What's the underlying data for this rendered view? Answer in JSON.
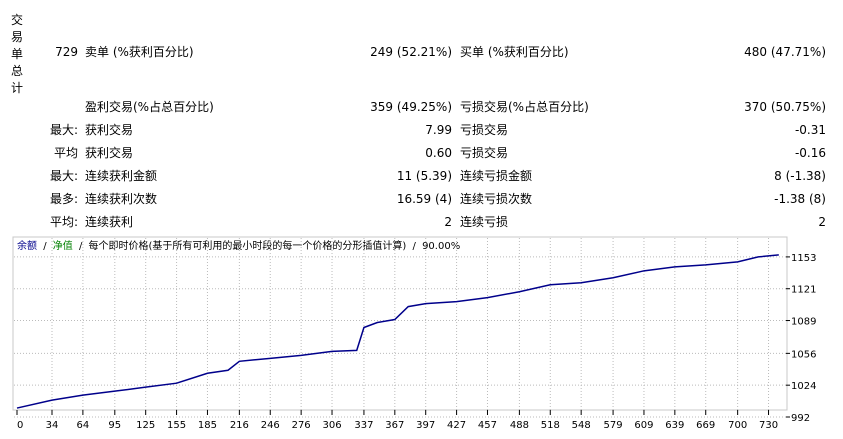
{
  "report": {
    "side_label": "交易单总计",
    "rows": [
      {
        "prefix": "729",
        "label1": "卖单 (%获利百分比)",
        "value1": "249 (52.21%)",
        "label2": "买单 (%获利百分比)",
        "value2": "480 (47.71%)"
      },
      {
        "label1": "盈利交易(%占总百分比)",
        "value1": "359 (49.25%)",
        "label2": "亏损交易(%占总百分比)",
        "value2": "370 (50.75%)"
      },
      {
        "prefix": "最大:",
        "label1": "获利交易",
        "value1": "7.99",
        "label2": "亏损交易",
        "value2": "-0.31"
      },
      {
        "prefix": "平均",
        "label1": "获利交易",
        "value1": "0.60",
        "label2": "亏损交易",
        "value2": "-0.16"
      },
      {
        "prefix": "最大:",
        "label1": "连续获利金额",
        "value1": "11 (5.39)",
        "label2": "连续亏损金额",
        "value2": "8 (-1.38)"
      },
      {
        "prefix": "最多:",
        "label1": "连续获利次数",
        "value1": "16.59 (4)",
        "label2": "连续亏损次数",
        "value2": "-1.38 (8)"
      },
      {
        "prefix": "平均:",
        "label1": "连续获利",
        "value1": "2",
        "label2": "连续亏损",
        "value2": "2"
      }
    ]
  },
  "chart_data": {
    "type": "line",
    "separator": "/",
    "equity_name": "净值",
    "equity_color": "#008000",
    "model": "每个即时价格(基于所有可利用的最小时段的每一个价格的分形插值计算)",
    "quality": "90.00%",
    "x": [
      0,
      34,
      64,
      95,
      125,
      155,
      185,
      205,
      216,
      246,
      276,
      306,
      330,
      337,
      350,
      367,
      380,
      397,
      427,
      457,
      488,
      518,
      548,
      579,
      609,
      639,
      669,
      700,
      720,
      740
    ],
    "series": [
      {
        "name": "余额",
        "color": "#00008b",
        "values": [
          1001,
          1009,
          1014,
          1018,
          1022,
          1026,
          1036,
          1039,
          1048,
          1051,
          1054,
          1058,
          1059,
          1082,
          1087,
          1090,
          1103,
          1106,
          1108,
          1112,
          1118,
          1125,
          1127,
          1132,
          1139,
          1143,
          1145,
          1148,
          1153,
          1155
        ]
      }
    ],
    "xlim": [
      0,
      746
    ],
    "xticks": [
      0,
      34,
      64,
      95,
      125,
      155,
      185,
      216,
      246,
      276,
      306,
      337,
      367,
      397,
      427,
      457,
      488,
      518,
      548,
      579,
      609,
      639,
      669,
      700,
      730
    ],
    "ylim": [
      992,
      1170
    ],
    "yticks": [
      992,
      1024,
      1056,
      1089,
      1121,
      1153
    ],
    "grid": true
  }
}
